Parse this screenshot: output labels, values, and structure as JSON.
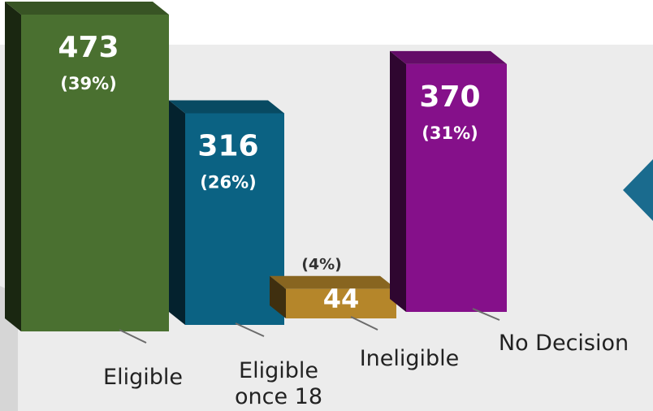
{
  "chart_data": {
    "type": "bar",
    "style": "3d-column",
    "categories": [
      {
        "label": [
          "Eligible"
        ],
        "value": 473,
        "percent": "(39%)",
        "color": "#4a7030"
      },
      {
        "label": [
          "Eligible",
          "once 18"
        ],
        "value": 316,
        "percent": "(26%)",
        "color": "#0b6283"
      },
      {
        "label": [
          "Ineligible"
        ],
        "value": 44,
        "percent": "(4%)",
        "color": "#b5862a"
      },
      {
        "label": [
          "No Decision"
        ],
        "value": 370,
        "percent": "(31%)",
        "color": "#85108a"
      }
    ],
    "background_panel_color": "#ececec",
    "accent_arrow_color": "#1a6b8e",
    "grid": false,
    "legend": "none"
  }
}
